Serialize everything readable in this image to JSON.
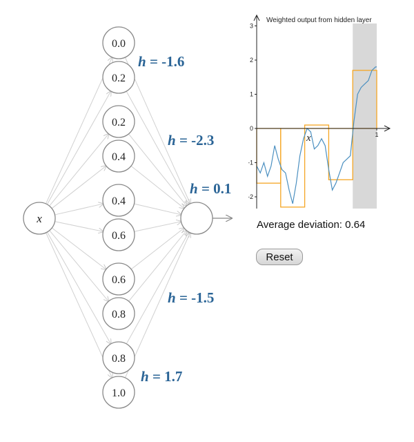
{
  "network": {
    "input_label": "x",
    "hidden_nodes": [
      "0.0",
      "0.2",
      "0.2",
      "0.4",
      "0.4",
      "0.6",
      "0.6",
      "0.8",
      "0.8",
      "1.0"
    ],
    "h_labels": [
      {
        "var": "h",
        "eq": " = ",
        "value": "-1.6"
      },
      {
        "var": "h",
        "eq": " = ",
        "value": "-2.3"
      },
      {
        "var": "h",
        "eq": " = ",
        "value": "0.1"
      },
      {
        "var": "h",
        "eq": " = ",
        "value": "-1.5"
      },
      {
        "var": "h",
        "eq": " = ",
        "value": "1.7"
      }
    ]
  },
  "chart_data": {
    "type": "line",
    "title": "Weighted output from hidden layer",
    "xlabel": "x",
    "x_ticks": [
      "1"
    ],
    "y_ticks": [
      "3",
      "2",
      "1",
      "0",
      "-1",
      "-2"
    ],
    "xlim": [
      0,
      1
    ],
    "ylim": [
      -2.3,
      3
    ],
    "highlight_region": [
      0.8,
      1.0
    ],
    "step_function": {
      "breaks": [
        0,
        0.2,
        0.4,
        0.6,
        0.8,
        1.0
      ],
      "values": [
        -1.6,
        -2.3,
        0.1,
        -1.5,
        1.7
      ],
      "color": "#f5a623"
    },
    "target_function": {
      "color": "#4a8fc0",
      "x": [
        0,
        0.03,
        0.06,
        0.09,
        0.12,
        0.15,
        0.18,
        0.21,
        0.24,
        0.27,
        0.3,
        0.33,
        0.36,
        0.39,
        0.42,
        0.45,
        0.48,
        0.51,
        0.54,
        0.57,
        0.6,
        0.63,
        0.66,
        0.69,
        0.72,
        0.75,
        0.78,
        0.81,
        0.84,
        0.87,
        0.9,
        0.93,
        0.96,
        0.99,
        1.0
      ],
      "y": [
        -1.1,
        -1.3,
        -1.0,
        -1.4,
        -1.1,
        -0.5,
        -0.9,
        -1.2,
        -1.3,
        -1.8,
        -2.2,
        -1.6,
        -0.8,
        -0.3,
        0.0,
        -0.1,
        -0.6,
        -0.5,
        -0.3,
        -0.5,
        -1.2,
        -1.8,
        -1.6,
        -1.3,
        -1.0,
        -0.9,
        -0.8,
        0.2,
        1.0,
        1.2,
        1.3,
        1.4,
        1.7,
        1.8,
        1.8
      ]
    },
    "colors": {
      "highlight": "#d8d8d8",
      "axis": "#222222"
    }
  },
  "stats": {
    "label": "Average deviation: ",
    "value": "0.64"
  },
  "controls": {
    "reset_label": "Reset"
  }
}
